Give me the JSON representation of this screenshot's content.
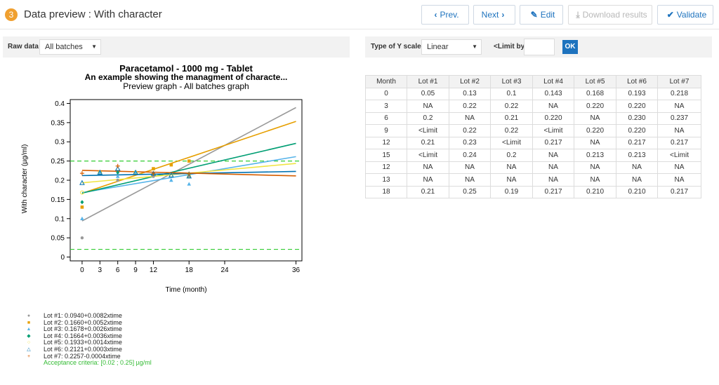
{
  "header": {
    "step": "3",
    "title": "Data preview : With character",
    "buttons": {
      "prev": "Prev.",
      "next": "Next",
      "edit": "Edit",
      "download": "Download results",
      "validate": "Validate"
    }
  },
  "left_toolbar": {
    "raw_data_label": "Raw data",
    "batches_value": "All batches"
  },
  "right_toolbar": {
    "y_scale_label": "Type of Y scale",
    "y_scale_value": "Linear",
    "limit_label": "<Limit by",
    "ok_label": "OK"
  },
  "table": {
    "headers": [
      "Month",
      "Lot #1",
      "Lot #2",
      "Lot #3",
      "Lot #4",
      "Lot #5",
      "Lot #6",
      "Lot #7"
    ],
    "rows": [
      [
        "0",
        "0.05",
        "0.13",
        "0.1",
        "0.143",
        "0.168",
        "0.193",
        "0.218"
      ],
      [
        "3",
        "NA",
        "0.22",
        "0.22",
        "NA",
        "0.220",
        "0.220",
        "NA"
      ],
      [
        "6",
        "0.2",
        "NA",
        "0.21",
        "0.220",
        "NA",
        "0.230",
        "0.237"
      ],
      [
        "9",
        "<Limit",
        "0.22",
        "0.22",
        "<Limit",
        "0.220",
        "0.220",
        "NA"
      ],
      [
        "12",
        "0.21",
        "0.23",
        "<Limit",
        "0.217",
        "NA",
        "0.217",
        "0.217"
      ],
      [
        "15",
        "<Limit",
        "0.24",
        "0.2",
        "NA",
        "0.213",
        "0.213",
        "<Limit"
      ],
      [
        "12",
        "NA",
        "NA",
        "NA",
        "NA",
        "NA",
        "NA",
        "NA"
      ],
      [
        "13",
        "NA",
        "NA",
        "NA",
        "NA",
        "NA",
        "NA",
        "NA"
      ],
      [
        "18",
        "0.21",
        "0.25",
        "0.19",
        "0.217",
        "0.210",
        "0.210",
        "0.217"
      ]
    ]
  },
  "legend": {
    "entries": [
      {
        "text": "Lot #1: 0.0940+0.0082xtime",
        "marker": "●",
        "color": "#999999"
      },
      {
        "text": "Lot #2: 0.1660+0.0052xtime",
        "marker": "■",
        "color": "#e69f00"
      },
      {
        "text": "Lot #3: 0.1678+0.0026xtime",
        "marker": "▲",
        "color": "#56b4e9"
      },
      {
        "text": "Lot #4: 0.1664+0.0036xtime",
        "marker": "◆",
        "color": "#009e73"
      },
      {
        "text": "Lot #5: 0.1933+0.0014xtime",
        "marker": "○",
        "color": "#f0e442"
      },
      {
        "text": "Lot #6: 0.2121+0.0003xtime",
        "marker": "△",
        "color": "#0072b2"
      },
      {
        "text": "Lot #7: 0.2257-0.0004xtime",
        "marker": "+",
        "color": "#d55e00"
      }
    ],
    "acceptance": "Acceptance criteria: [0.02 ; 0.25]  µg/ml"
  },
  "chart_data": {
    "type": "scatter",
    "title": "Paracetamol - 1000 mg - Tablet",
    "subtitle": "An example showing the managment of characte...",
    "subtitle2": "Preview graph - All batches graph",
    "xlabel": "Time (month)",
    "ylabel": "With character (µg/ml)",
    "xlim": [
      -2,
      37
    ],
    "ylim": [
      -0.01,
      0.41
    ],
    "xticks": [
      0,
      3,
      6,
      9,
      12,
      18,
      24,
      36
    ],
    "yticks": [
      0,
      0.05,
      0.1,
      0.15,
      0.2,
      0.25,
      0.3,
      0.35,
      0.4
    ],
    "grid": false,
    "acceptance_limits": [
      0.02,
      0.25
    ],
    "series": [
      {
        "name": "Lot #1",
        "color": "#999999",
        "marker": "circle",
        "intercept": 0.094,
        "slope": 0.0082,
        "x": [
          0,
          6,
          12,
          18
        ],
        "y": [
          0.05,
          0.2,
          0.21,
          0.21
        ]
      },
      {
        "name": "Lot #2",
        "color": "#e69f00",
        "marker": "square",
        "intercept": 0.166,
        "slope": 0.0052,
        "x": [
          0,
          3,
          9,
          12,
          15,
          18
        ],
        "y": [
          0.13,
          0.22,
          0.22,
          0.23,
          0.24,
          0.25
        ]
      },
      {
        "name": "Lot #3",
        "color": "#56b4e9",
        "marker": "triangle",
        "intercept": 0.1678,
        "slope": 0.0026,
        "x": [
          0,
          3,
          6,
          9,
          15,
          18
        ],
        "y": [
          0.1,
          0.22,
          0.21,
          0.22,
          0.2,
          0.19
        ]
      },
      {
        "name": "Lot #4",
        "color": "#009e73",
        "marker": "diamond",
        "intercept": 0.1664,
        "slope": 0.0036,
        "x": [
          0,
          6,
          12,
          18
        ],
        "y": [
          0.143,
          0.22,
          0.217,
          0.217
        ]
      },
      {
        "name": "Lot #5",
        "color": "#f0e442",
        "marker": "open-circle",
        "intercept": 0.1933,
        "slope": 0.0014,
        "x": [
          0,
          3,
          9,
          15,
          18
        ],
        "y": [
          0.168,
          0.22,
          0.22,
          0.213,
          0.21
        ]
      },
      {
        "name": "Lot #6",
        "color": "#0072b2",
        "marker": "open-triangle",
        "intercept": 0.2121,
        "slope": 0.0003,
        "x": [
          0,
          3,
          6,
          9,
          12,
          15,
          18
        ],
        "y": [
          0.193,
          0.22,
          0.23,
          0.22,
          0.217,
          0.213,
          0.21
        ]
      },
      {
        "name": "Lot #7",
        "color": "#d55e00",
        "marker": "plus",
        "intercept": 0.2257,
        "slope": -0.0004,
        "x": [
          0,
          6,
          12,
          18
        ],
        "y": [
          0.218,
          0.237,
          0.217,
          0.217
        ]
      }
    ]
  }
}
